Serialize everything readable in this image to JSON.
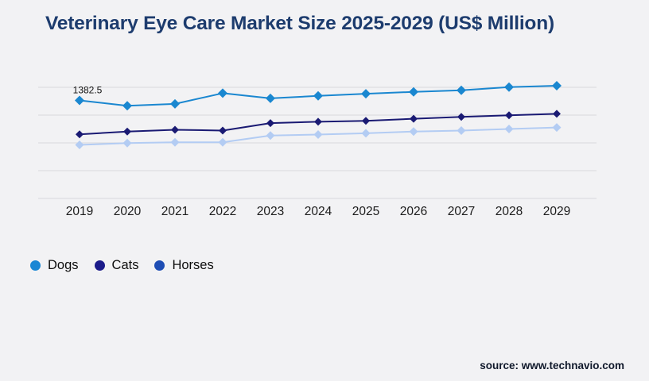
{
  "page": {
    "title": "Veterinary Eye Care Market Size 2025-2029 (US$ Million)",
    "source": "source: www.technavio.com",
    "background": "#f2f2f4",
    "title_color": "#1d3c6e",
    "grid_color": "#d8d8db",
    "tick_color": "#1c1c1c"
  },
  "chart_data": {
    "type": "line",
    "title": "Veterinary Eye Care Market Size 2025-2029 (US$ Million)",
    "categories": [
      "2019",
      "2020",
      "2021",
      "2022",
      "2023",
      "2024",
      "2025",
      "2026",
      "2027",
      "2028",
      "2029"
    ],
    "series": [
      {
        "name": "Dogs",
        "color": "#1a87d0",
        "legend_color": "#1a87d4",
        "values": [
          1382.5,
          1334,
          1351,
          1447,
          1401,
          1423,
          1442,
          1459,
          1473,
          1502,
          1514
        ]
      },
      {
        "name": "Cats",
        "color": "#1a1a73",
        "legend_color": "#1b1b8a",
        "values": [
          1077,
          1102,
          1118,
          1111,
          1178,
          1190,
          1198,
          1217,
          1234,
          1248,
          1262
        ]
      },
      {
        "name": "Horses",
        "color": "#b3ccf3",
        "legend_color": "#1e4db4",
        "values": [
          982,
          998,
          1005,
          1005,
          1066,
          1075,
          1087,
          1102,
          1111,
          1125,
          1138
        ]
      }
    ],
    "annotation": {
      "series": "Dogs",
      "category": "2019",
      "text": "1382.5"
    },
    "ylim": [
      500,
      1550
    ],
    "gridline_values": [
      1500,
      1250,
      1000,
      750,
      500
    ],
    "grid": "horizontal-only",
    "legend_position": "bottom-left",
    "xlabel": "",
    "ylabel": ""
  }
}
